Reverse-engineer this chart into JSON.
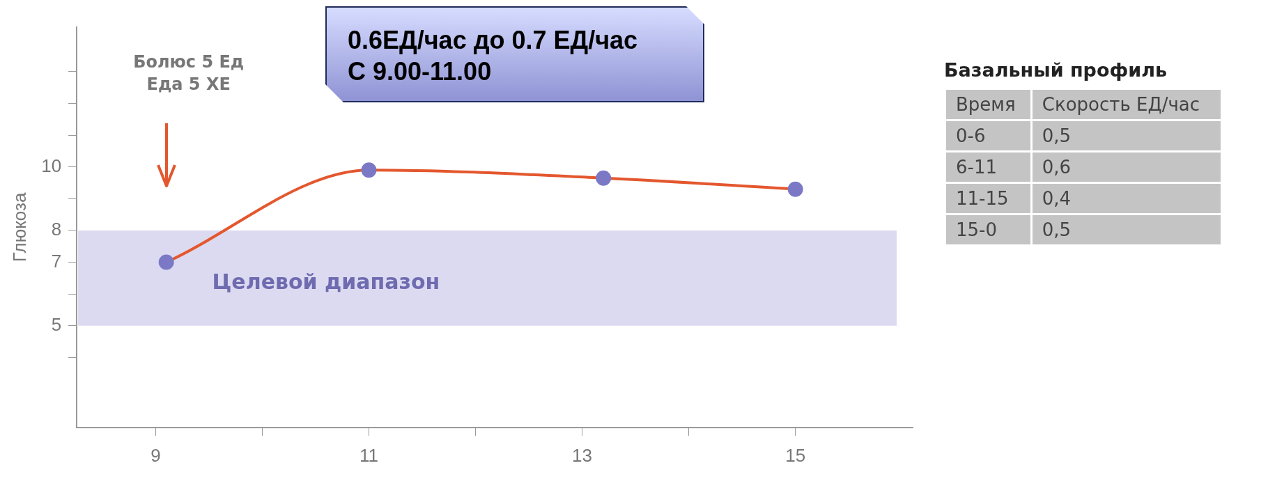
{
  "chart_data": [
    {
      "type": "line",
      "ylabel": "Глюкоза",
      "x": [
        9.1,
        11,
        13.2,
        15
      ],
      "series": [
        {
          "color": "#e4572e",
          "colors": [
            "#7b79c6",
            "#7b79c6",
            "#7b79c6",
            "#7b79c6"
          ],
          "values": [
            7,
            9.9,
            9.65,
            9.3
          ]
        }
      ],
      "xlim": [
        8.26,
        16.1
      ],
      "xticks": [
        9,
        {
          "value": 10,
          "label": null
        },
        11,
        {
          "value": 12,
          "label": null
        },
        13,
        {
          "value": 14,
          "label": null
        },
        15
      ],
      "ylim": [
        1.8,
        14.4
      ],
      "yticks": [
        {
          "value": 4,
          "label": null
        },
        5,
        {
          "value": 6,
          "label": null
        },
        7,
        8,
        {
          "value": 9,
          "label": null
        },
        10,
        {
          "value": 11,
          "label": null
        },
        {
          "value": 12,
          "label": null
        },
        {
          "value": 13,
          "label": null
        }
      ],
      "bands": [
        {
          "axis": "y",
          "from": 5,
          "to": 8,
          "label": "Целевой диапазон",
          "color": "#dcdaf0"
        }
      ],
      "annotations": [
        "Болюс 5 Ед\nЕда 5 ХЕ",
        "0.6ЕД/час до 0.7 ЕД/час\nС 9.00-11.00"
      ],
      "grid": false,
      "legend": false,
      "marker": "circle",
      "line_style": "solid"
    },
    {
      "type": "other",
      "title": "Базальный профиль",
      "annotations": [
        "Время",
        "Скорость ЕД/час",
        "0-6",
        "0,5",
        "6-11",
        "0,6",
        "11-15",
        "0,4",
        "15-0",
        "0,5"
      ]
    }
  ]
}
